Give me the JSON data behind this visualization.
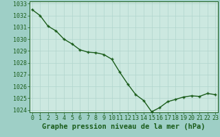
{
  "x": [
    0,
    1,
    2,
    3,
    4,
    5,
    6,
    7,
    8,
    9,
    10,
    11,
    12,
    13,
    14,
    15,
    16,
    17,
    18,
    19,
    20,
    21,
    22,
    23
  ],
  "y": [
    1032.5,
    1032.0,
    1031.1,
    1030.7,
    1030.0,
    1029.6,
    1029.1,
    1028.9,
    1028.85,
    1028.7,
    1028.3,
    1027.2,
    1026.2,
    1025.3,
    1024.8,
    1023.85,
    1024.2,
    1024.7,
    1024.9,
    1025.1,
    1025.2,
    1025.15,
    1025.4,
    1025.3
  ],
  "ylim_min": 1023.8,
  "ylim_max": 1033.2,
  "xlim_min": -0.3,
  "xlim_max": 23.3,
  "yticks": [
    1024,
    1025,
    1026,
    1027,
    1028,
    1029,
    1030,
    1031,
    1032,
    1033
  ],
  "xticks": [
    0,
    1,
    2,
    3,
    4,
    5,
    6,
    7,
    8,
    9,
    10,
    11,
    12,
    13,
    14,
    15,
    16,
    17,
    18,
    19,
    20,
    21,
    22,
    23
  ],
  "line_color": "#1a5c1a",
  "marker_color": "#1a5c1a",
  "bg_plot": "#cce8e0",
  "bg_fig": "#9ecfc6",
  "grid_color": "#b0d4cc",
  "xlabel": "Graphe pression niveau de la mer (hPa)",
  "xlabel_color": "#1a5c1a",
  "tick_color": "#1a5c1a",
  "xlabel_fontsize": 7.5,
  "tick_fontsize": 6.0,
  "line_width": 1.0,
  "marker_size": 3.5
}
